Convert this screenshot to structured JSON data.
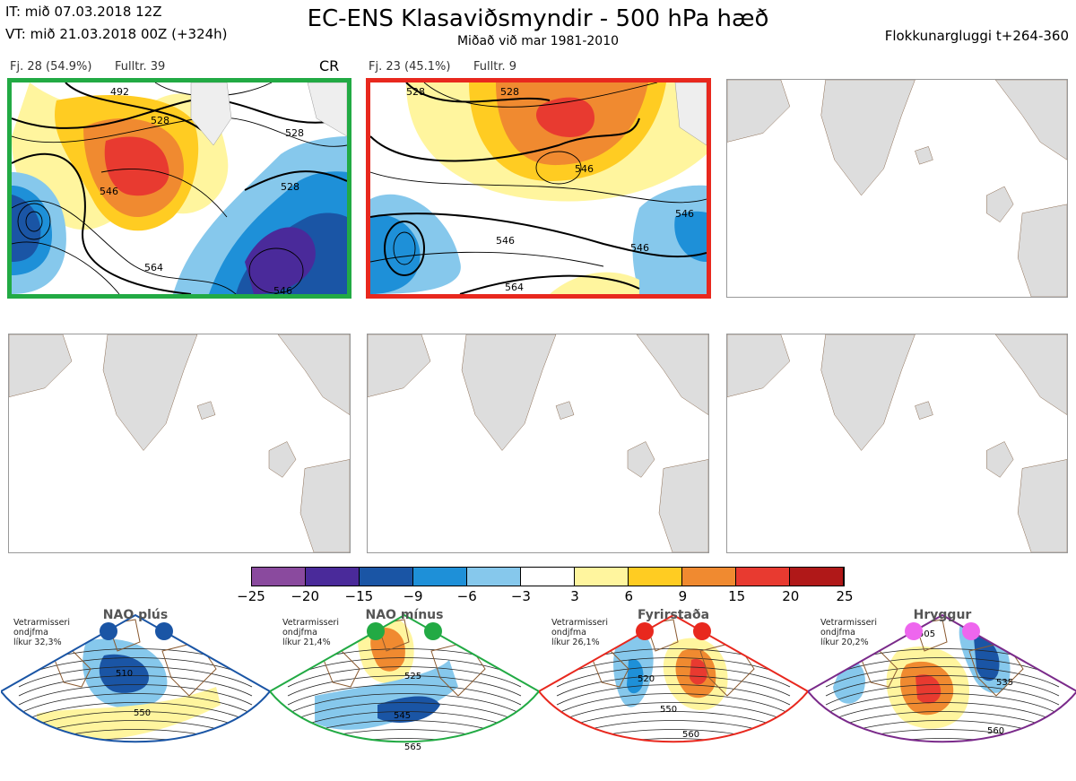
{
  "header": {
    "it": "IT: mið 07.03.2018 12Z",
    "vt": "VT: mið 21.03.2018 00Z  (+324h)",
    "title": "EC-ENS Klasaviðsmyndir - 500 hPa hæð",
    "subtitle": "Miðað við mar 1981-2010",
    "window": "Flokkunargluggi t+264-360"
  },
  "clusters": [
    {
      "label": "Fj. 28 (54.9%)",
      "full": "Fulltr. 39",
      "tag": "CR",
      "border": "#22aa44",
      "contours": [
        "492",
        "528",
        "528",
        "528",
        "546",
        "564",
        "546"
      ]
    },
    {
      "label": "Fj. 23 (45.1%)",
      "full": "Fulltr. 9",
      "border": "#e8281e",
      "contours": [
        "528",
        "528",
        "546",
        "546",
        "546",
        "564",
        "546"
      ]
    }
  ],
  "colorbar": {
    "colors": [
      "#8a4a9e",
      "#4a2a9a",
      "#1a55a5",
      "#1e90d8",
      "#86c8ec",
      "#ffffff",
      "#fff59e",
      "#ffcc22",
      "#f08a30",
      "#e83a30",
      "#b01818"
    ],
    "labels": [
      "−25",
      "−20",
      "−15",
      "−9",
      "−6",
      "−3",
      "3",
      "6",
      "9",
      "15",
      "20",
      "25"
    ]
  },
  "regimes": [
    {
      "name": "NAO plús",
      "note": [
        "Vetrarmisseri",
        "ondjfma",
        "líkur 32,3%"
      ],
      "color": "#1a55a5",
      "dot": "#1a55a5",
      "contours": [
        "510",
        "550"
      ]
    },
    {
      "name": "NAO mínus",
      "note": [
        "Vetrarmisseri",
        "ondjfma",
        "líkur 21,4%"
      ],
      "color": "#22aa44",
      "dot": "#22aa44",
      "contours": [
        "525",
        "545",
        "565"
      ]
    },
    {
      "name": "Fyrirstaða",
      "note": [
        "Vetrarmisseri",
        "ondjfma",
        "líkur 26,1%"
      ],
      "color": "#e8281e",
      "dot": "#e8281e",
      "contours": [
        "520",
        "550",
        "560"
      ]
    },
    {
      "name": "Hryggur",
      "note": [
        "Vetrarmisseri",
        "ondjfma",
        "líkur 20,2%"
      ],
      "color": "#7a2a8a",
      "dot": "#ee66ee",
      "contours": [
        "505",
        "535",
        "560"
      ]
    }
  ]
}
